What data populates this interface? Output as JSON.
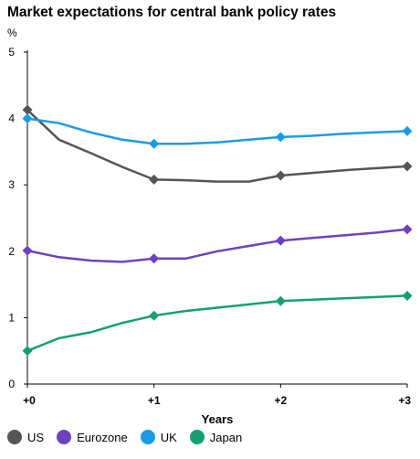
{
  "chart_data": {
    "type": "line",
    "title": "Market expectations for central bank policy rates",
    "ylabel": "%",
    "xlabel": "Years",
    "ylim": [
      0,
      5
    ],
    "xlim": [
      0,
      3
    ],
    "yticks": [
      "0",
      "1",
      "2",
      "3",
      "4",
      "5"
    ],
    "xticks": [
      "+0",
      "+1",
      "+2",
      "+3"
    ],
    "grid": false,
    "legend_position": "bottom",
    "series": [
      {
        "name": "US",
        "color": "#555555",
        "x": [
          0,
          0.25,
          0.5,
          0.75,
          1,
          1.25,
          1.5,
          1.75,
          2,
          2.25,
          2.5,
          2.75,
          3
        ],
        "values": [
          4.13,
          3.68,
          3.48,
          3.27,
          3.08,
          3.07,
          3.05,
          3.05,
          3.14,
          3.18,
          3.22,
          3.25,
          3.28
        ],
        "markers": [
          0,
          4,
          8,
          12
        ]
      },
      {
        "name": "Eurozone",
        "color": "#7040c0",
        "x": [
          0,
          0.25,
          0.5,
          0.75,
          1,
          1.25,
          1.5,
          1.75,
          2,
          2.25,
          2.5,
          2.75,
          3
        ],
        "values": [
          2.01,
          1.91,
          1.86,
          1.84,
          1.89,
          1.89,
          2.0,
          2.08,
          2.16,
          2.2,
          2.24,
          2.28,
          2.33
        ],
        "markers": [
          0,
          4,
          8,
          12
        ]
      },
      {
        "name": "UK",
        "color": "#1a9be8",
        "x": [
          0,
          0.25,
          0.5,
          0.75,
          1,
          1.25,
          1.5,
          1.75,
          2,
          2.25,
          2.5,
          2.75,
          3
        ],
        "values": [
          4.0,
          3.93,
          3.79,
          3.68,
          3.62,
          3.62,
          3.64,
          3.68,
          3.72,
          3.74,
          3.77,
          3.79,
          3.81
        ],
        "markers": [
          0,
          4,
          8,
          12
        ]
      },
      {
        "name": "Japan",
        "color": "#14a06e",
        "x": [
          0,
          0.25,
          0.5,
          0.75,
          1,
          1.25,
          1.5,
          1.75,
          2,
          2.25,
          2.5,
          2.75,
          3
        ],
        "values": [
          0.5,
          0.69,
          0.78,
          0.92,
          1.03,
          1.1,
          1.15,
          1.2,
          1.25,
          1.27,
          1.29,
          1.31,
          1.33
        ],
        "markers": [
          0,
          4,
          8,
          12
        ]
      }
    ]
  }
}
